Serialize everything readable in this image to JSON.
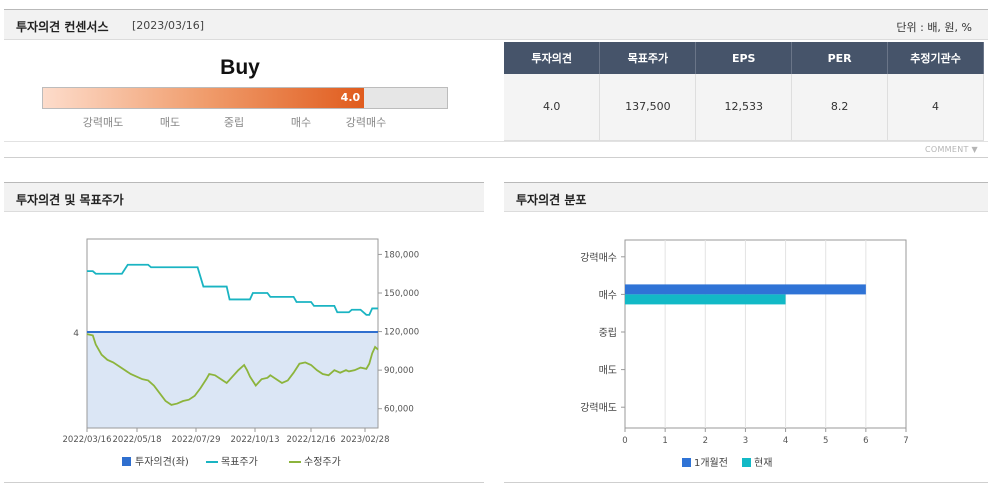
{
  "header": {
    "title": "투자의견 컨센서스",
    "date": "[2023/03/16]",
    "unit": "단위 : 배, 원, %"
  },
  "gauge": {
    "rating_word": "Buy",
    "value": 4.0,
    "value_label": "4.0",
    "max": 5.0,
    "labels": [
      "강력매도",
      "매도",
      "중립",
      "매수",
      "강력매수"
    ]
  },
  "consensus_table": {
    "headers": [
      "투자의견",
      "목표주가",
      "EPS",
      "PER",
      "추정기관수"
    ],
    "values": [
      "4.0",
      "137,500",
      "12,533",
      "8.2",
      "4"
    ]
  },
  "comment_label": "COMMENT",
  "panels": {
    "left_title": "투자의견 및 목표주가",
    "right_title": "투자의견 분포"
  },
  "chart_data": [
    {
      "type": "line",
      "x_ticks": [
        "2022/03/16",
        "2022/05/18",
        "2022/07/29",
        "2022/10/13",
        "2022/12/16",
        "2023/02/28"
      ],
      "y_left_ticks": [
        "4"
      ],
      "y_right_ticks": [
        "180,000",
        "150,000",
        "120,000",
        "90,000",
        "60,000"
      ],
      "y_right_values": [
        180000,
        150000,
        120000,
        90000,
        60000
      ],
      "ylim_right": [
        45000,
        192000
      ],
      "legend_position": "bottom",
      "series": [
        {
          "name": "투자의견(좌)",
          "axis": "left",
          "color": "#2f6fcf",
          "fill": "#dbe6f5",
          "value": 4,
          "x": [
            0,
            100
          ]
        },
        {
          "name": "목표주가",
          "axis": "right",
          "color": "#1ab4c2",
          "x": [
            0,
            2,
            3,
            12,
            14,
            21,
            22,
            38,
            40,
            41,
            48,
            49,
            56,
            57,
            62,
            63,
            71,
            72,
            77,
            78,
            85,
            86,
            90,
            91,
            94,
            96,
            97,
            98,
            100
          ],
          "y": [
            167000,
            167000,
            165000,
            165000,
            172000,
            172000,
            170000,
            170000,
            155000,
            155000,
            155000,
            145000,
            145000,
            150000,
            150000,
            147000,
            147000,
            143000,
            143000,
            140000,
            140000,
            135000,
            135000,
            137000,
            137000,
            133000,
            133000,
            138000,
            138000
          ]
        },
        {
          "name": "수정주가",
          "axis": "right",
          "color": "#8cb43c",
          "x": [
            0,
            2,
            3,
            5,
            7,
            9,
            11,
            13,
            15,
            17,
            19,
            21,
            23,
            25,
            27,
            29,
            31,
            33,
            35,
            37,
            39,
            41,
            42,
            44,
            46,
            48,
            50,
            52,
            54,
            55,
            56,
            58,
            60,
            62,
            63,
            65,
            67,
            69,
            71,
            73,
            75,
            77,
            79,
            81,
            83,
            85,
            87,
            89,
            90,
            92,
            94,
            96,
            97,
            98,
            99,
            100
          ],
          "y": [
            118000,
            117000,
            110000,
            102000,
            98000,
            96000,
            93000,
            90000,
            87000,
            85000,
            83000,
            82000,
            78000,
            72000,
            66000,
            63000,
            64000,
            66000,
            67000,
            70000,
            76000,
            83000,
            87000,
            86000,
            83000,
            80000,
            85000,
            90000,
            94000,
            90000,
            85000,
            78000,
            83000,
            84000,
            86000,
            83000,
            80000,
            82000,
            88000,
            95000,
            96000,
            94000,
            90000,
            87000,
            86000,
            90000,
            88000,
            90000,
            89000,
            90000,
            92000,
            91000,
            95000,
            103000,
            108000,
            106000
          ]
        }
      ]
    },
    {
      "type": "bar",
      "orientation": "horizontal",
      "categories": [
        "강력매수",
        "매수",
        "중립",
        "매도",
        "강력매도"
      ],
      "xlim": [
        0,
        7
      ],
      "x_ticks": [
        0,
        1,
        2,
        3,
        4,
        5,
        6,
        7
      ],
      "legend_position": "bottom",
      "series": [
        {
          "name": "1개월전",
          "color": "#2f73d6",
          "values": [
            0,
            6,
            0,
            0,
            0
          ]
        },
        {
          "name": "현재",
          "color": "#12b9c6",
          "values": [
            0,
            4,
            0,
            0,
            0
          ]
        }
      ]
    }
  ]
}
